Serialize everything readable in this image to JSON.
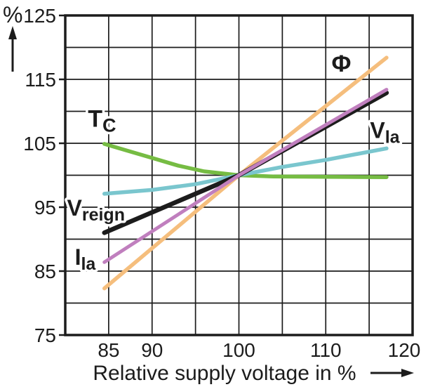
{
  "page": {
    "background": "#ffffff",
    "frame_color": "#c9c9c9"
  },
  "y_axis": {
    "unit": "%",
    "arrow": "up"
  },
  "x_axis": {
    "title": "Relative supply voltage in %",
    "arrow": "right"
  },
  "chart_data": {
    "type": "line",
    "title": "",
    "xlabel": "Relative supply voltage in %",
    "ylabel": "%",
    "xlim": [
      80,
      120
    ],
    "ylim": [
      75,
      125
    ],
    "grid": true,
    "grid_step": 5,
    "x_ticks": [
      85,
      90,
      100,
      110,
      120
    ],
    "y_ticks": [
      125,
      115,
      105,
      95,
      85,
      75
    ],
    "legend_position": "inline-labels",
    "crossing_point": [
      100,
      100
    ],
    "colors": {
      "grid": "#1c1c1c",
      "border": "#1c1c1c",
      "phi": "#F5BE7D",
      "tc": "#76BC43",
      "vla": "#7AC6CE",
      "vreign": "#1c1c1c",
      "ila": "#C07FBE"
    },
    "series": [
      {
        "name": "Tc",
        "label_main": "T",
        "label_sub": "C",
        "color": "#76BC43",
        "width": 5.5,
        "label_pos": [
          82.6,
          107.6
        ],
        "label_anchor": "start",
        "label_size": 34,
        "points": [
          [
            84.5,
            104.9
          ],
          [
            87,
            103.9
          ],
          [
            90,
            102.7
          ],
          [
            93,
            101.5
          ],
          [
            96,
            100.6
          ],
          [
            100,
            100
          ],
          [
            104,
            99.8
          ],
          [
            110,
            99.75
          ],
          [
            117,
            99.7
          ]
        ]
      },
      {
        "name": "Vla",
        "label_main": "V",
        "label_sub": "la",
        "color": "#7AC6CE",
        "width": 5.5,
        "label_pos": [
          115.1,
          105.8
        ],
        "label_anchor": "start",
        "label_size": 32,
        "points": [
          [
            84.5,
            97.1
          ],
          [
            90,
            97.7
          ],
          [
            95,
            98.6
          ],
          [
            100,
            100
          ],
          [
            105,
            101.3
          ],
          [
            110,
            102.4
          ],
          [
            117,
            104.2
          ]
        ]
      },
      {
        "name": "Phi",
        "label_main": "Φ",
        "label_sub": "",
        "color": "#F5BE7D",
        "width": 5.5,
        "label_pos": [
          111.8,
          116.2
        ],
        "label_anchor": "middle",
        "label_size": 34,
        "points": [
          [
            84.5,
            82.3
          ],
          [
            100,
            100
          ],
          [
            117,
            118.4
          ]
        ]
      },
      {
        "name": "Vreign",
        "label_main": "V",
        "label_sub": "reign",
        "color": "#1c1c1c",
        "width": 6.5,
        "label_pos": [
          80.2,
          93.7
        ],
        "label_anchor": "start",
        "label_size": 32,
        "points": [
          [
            84.5,
            91
          ],
          [
            100,
            100
          ],
          [
            117,
            112.9
          ]
        ]
      },
      {
        "name": "Ila",
        "label_main": "I",
        "label_sub": "la",
        "color": "#C07FBE",
        "width": 5,
        "label_pos": [
          81.1,
          86.0
        ],
        "label_anchor": "start",
        "label_size": 32,
        "points": [
          [
            84.5,
            86.4
          ],
          [
            100,
            100
          ],
          [
            117,
            113.4
          ]
        ]
      }
    ]
  }
}
